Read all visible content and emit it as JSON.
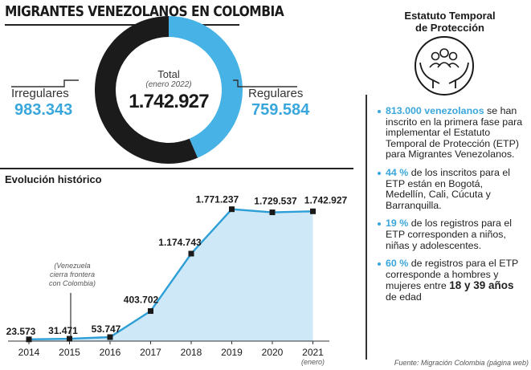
{
  "header": {
    "title": "MIGRANTES VENEZOLANOS EN COLOMBIA"
  },
  "donut": {
    "irregular_label": "Irregulares",
    "irregular_value": "983.343",
    "regular_label": "Regulares",
    "regular_value": "759.584",
    "total_label": "Total",
    "total_sub": "(enero 2022)",
    "total_value": "1.742.927",
    "colors": {
      "irregular": "#1b1b1b",
      "regular": "#46b2e6"
    }
  },
  "history": {
    "title": "Evolución histórico",
    "annotation": [
      "(Venezuela",
      "cierra frontera",
      "con Colombia)"
    ],
    "last_year_note": "(enero)"
  },
  "chart_data": [
    {
      "type": "pie",
      "categories": [
        "Irregulares",
        "Regulares"
      ],
      "values": [
        983343,
        759584
      ],
      "total": 1742927
    },
    {
      "type": "area",
      "x": [
        "2014",
        "2015",
        "2016",
        "2017",
        "2018",
        "2019",
        "2020",
        "2021"
      ],
      "values": [
        23573,
        31471,
        53747,
        403702,
        1174743,
        1771237,
        1729537,
        1742927
      ],
      "value_labels": [
        "23.573",
        "31.471",
        "53.747",
        "403.702",
        "1.174.743",
        "1.771.237",
        "1.729.537",
        "1.742.927"
      ],
      "ylim": [
        0,
        1800000
      ],
      "colors": {
        "line": "#2d9fd6",
        "fill": "#cfe8f7",
        "marker": "#1a1a1a"
      }
    }
  ],
  "sidebar": {
    "title_line1": "Estatuto Temporal",
    "title_line2": "de Protección",
    "icon": "people-hands-icon",
    "bullets": [
      {
        "highlight": "813.000 venezolanos",
        "text": " se han inscrito en la primera fase para implementar el Estatuto Temporal de Protección (ETP) para Migrantes Venezolanos."
      },
      {
        "highlight": "44 %",
        "text": " de los inscritos para el ETP están en Bogotá, Medellín, Cali, Cúcuta y Barranquilla."
      },
      {
        "highlight": "19 %",
        "text": " de los registros para el ETP corresponden a niños, niñas y adolescentes."
      },
      {
        "highlight": "60 %",
        "text": " de registros para el ETP corresponde a hombres y mujeres entre ",
        "bold": "18 y 39 años",
        "tail": " de edad"
      }
    ],
    "source": "Fuente: Migración Colombia (página web)"
  }
}
